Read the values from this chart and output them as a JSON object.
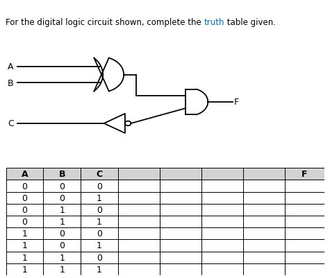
{
  "title_part1": "For the digital logic circuit shown, complete the ",
  "title_highlight": "truth",
  "title_part2": " table given.",
  "title_highlight_color": "#0070c0",
  "title_color": "#000000",
  "title_fontsize": 8.5,
  "table_headers": [
    "A",
    "B",
    "C",
    "",
    "",
    "",
    "",
    "F"
  ],
  "table_data": [
    [
      "0",
      "0",
      "0",
      "",
      "",
      "",
      "",
      ""
    ],
    [
      "0",
      "0",
      "1",
      "",
      "",
      "",
      "",
      ""
    ],
    [
      "0",
      "1",
      "0",
      "",
      "",
      "",
      "",
      ""
    ],
    [
      "0",
      "1",
      "1",
      "",
      "",
      "",
      "",
      ""
    ],
    [
      "1",
      "0",
      "0",
      "",
      "",
      "",
      "",
      ""
    ],
    [
      "1",
      "0",
      "1",
      "",
      "",
      "",
      "",
      ""
    ],
    [
      "1",
      "1",
      "0",
      "",
      "",
      "",
      "",
      ""
    ],
    [
      "1",
      "1",
      "1",
      "",
      "",
      "",
      "",
      ""
    ]
  ],
  "header_bg": "#d3d3d3",
  "cell_bg": "#ffffff",
  "grid_color": "#000000",
  "bg_color": "#ffffff"
}
